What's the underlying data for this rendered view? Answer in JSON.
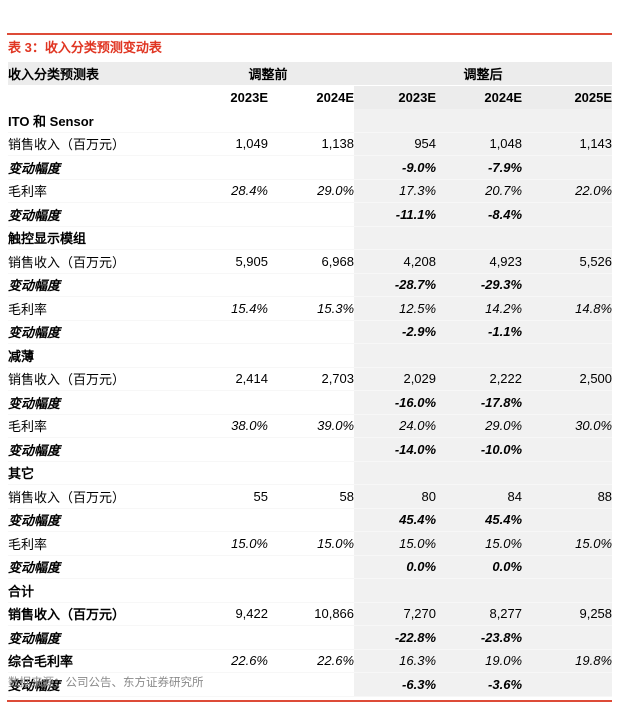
{
  "title": "表 3：收入分类预测变动表",
  "footer": {
    "source": "数据来源：公司公告、东方证券研究所"
  },
  "colors": {
    "accent_red": "#e03522",
    "rule_red": "#dd4b38",
    "header_bg": "#ececec",
    "highlight_bg": "#f1f1f1",
    "source_text": "#8a8a8a"
  },
  "table": {
    "corner_label": "收入分类预测表",
    "group_headers": [
      {
        "label": "调整前",
        "span": 2
      },
      {
        "label": "调整后",
        "span": 3
      }
    ],
    "col_headers": [
      "2023E",
      "2024E",
      "2023E",
      "2024E",
      "2025E"
    ],
    "highlighted_columns": [
      3,
      4,
      5
    ],
    "sections": [
      {
        "name": "ITO 和 Sensor",
        "bold_labels": false,
        "rows": [
          {
            "label": "销售收入（百万元）",
            "type": "value",
            "values": [
              "1,049",
              "1,138",
              "954",
              "1,048",
              "1,143"
            ]
          },
          {
            "label": "变动幅度",
            "type": "change",
            "values": [
              "",
              "",
              "-9.0%",
              "-7.9%",
              ""
            ]
          },
          {
            "label": "毛利率",
            "type": "margin",
            "values": [
              "28.4%",
              "29.0%",
              "17.3%",
              "20.7%",
              "22.0%"
            ]
          },
          {
            "label": "变动幅度",
            "type": "change",
            "values": [
              "",
              "",
              "-11.1%",
              "-8.4%",
              ""
            ]
          }
        ]
      },
      {
        "name": "触控显示模组",
        "bold_labels": false,
        "rows": [
          {
            "label": "销售收入（百万元）",
            "type": "value",
            "values": [
              "5,905",
              "6,968",
              "4,208",
              "4,923",
              "5,526"
            ]
          },
          {
            "label": "变动幅度",
            "type": "change",
            "values": [
              "",
              "",
              "-28.7%",
              "-29.3%",
              ""
            ]
          },
          {
            "label": "毛利率",
            "type": "margin",
            "values": [
              "15.4%",
              "15.3%",
              "12.5%",
              "14.2%",
              "14.8%"
            ]
          },
          {
            "label": "变动幅度",
            "type": "change",
            "values": [
              "",
              "",
              "-2.9%",
              "-1.1%",
              ""
            ]
          }
        ]
      },
      {
        "name": "减薄",
        "bold_labels": false,
        "rows": [
          {
            "label": "销售收入（百万元）",
            "type": "value",
            "values": [
              "2,414",
              "2,703",
              "2,029",
              "2,222",
              "2,500"
            ]
          },
          {
            "label": "变动幅度",
            "type": "change",
            "values": [
              "",
              "",
              "-16.0%",
              "-17.8%",
              ""
            ]
          },
          {
            "label": "毛利率",
            "type": "margin",
            "values": [
              "38.0%",
              "39.0%",
              "24.0%",
              "29.0%",
              "30.0%"
            ]
          },
          {
            "label": "变动幅度",
            "type": "change",
            "values": [
              "",
              "",
              "-14.0%",
              "-10.0%",
              ""
            ]
          }
        ]
      },
      {
        "name": "其它",
        "bold_labels": false,
        "rows": [
          {
            "label": "销售收入（百万元）",
            "type": "value",
            "values": [
              "55",
              "58",
              "80",
              "84",
              "88"
            ]
          },
          {
            "label": "变动幅度",
            "type": "change",
            "values": [
              "",
              "",
              "45.4%",
              "45.4%",
              ""
            ]
          },
          {
            "label": "毛利率",
            "type": "margin",
            "values": [
              "15.0%",
              "15.0%",
              "15.0%",
              "15.0%",
              "15.0%"
            ]
          },
          {
            "label": "变动幅度",
            "type": "change",
            "values": [
              "",
              "",
              "0.0%",
              "0.0%",
              ""
            ]
          }
        ]
      },
      {
        "name": "合计",
        "bold_labels": true,
        "rows": [
          {
            "label": "销售收入（百万元）",
            "type": "value",
            "values": [
              "9,422",
              "10,866",
              "7,270",
              "8,277",
              "9,258"
            ]
          },
          {
            "label": "变动幅度",
            "type": "change",
            "values": [
              "",
              "",
              "-22.8%",
              "-23.8%",
              ""
            ]
          },
          {
            "label": "综合毛利率",
            "type": "margin",
            "values": [
              "22.6%",
              "22.6%",
              "16.3%",
              "19.0%",
              "19.8%"
            ]
          },
          {
            "label": "变动幅度",
            "type": "change",
            "values": [
              "",
              "",
              "-6.3%",
              "-3.6%",
              ""
            ]
          }
        ]
      }
    ]
  }
}
